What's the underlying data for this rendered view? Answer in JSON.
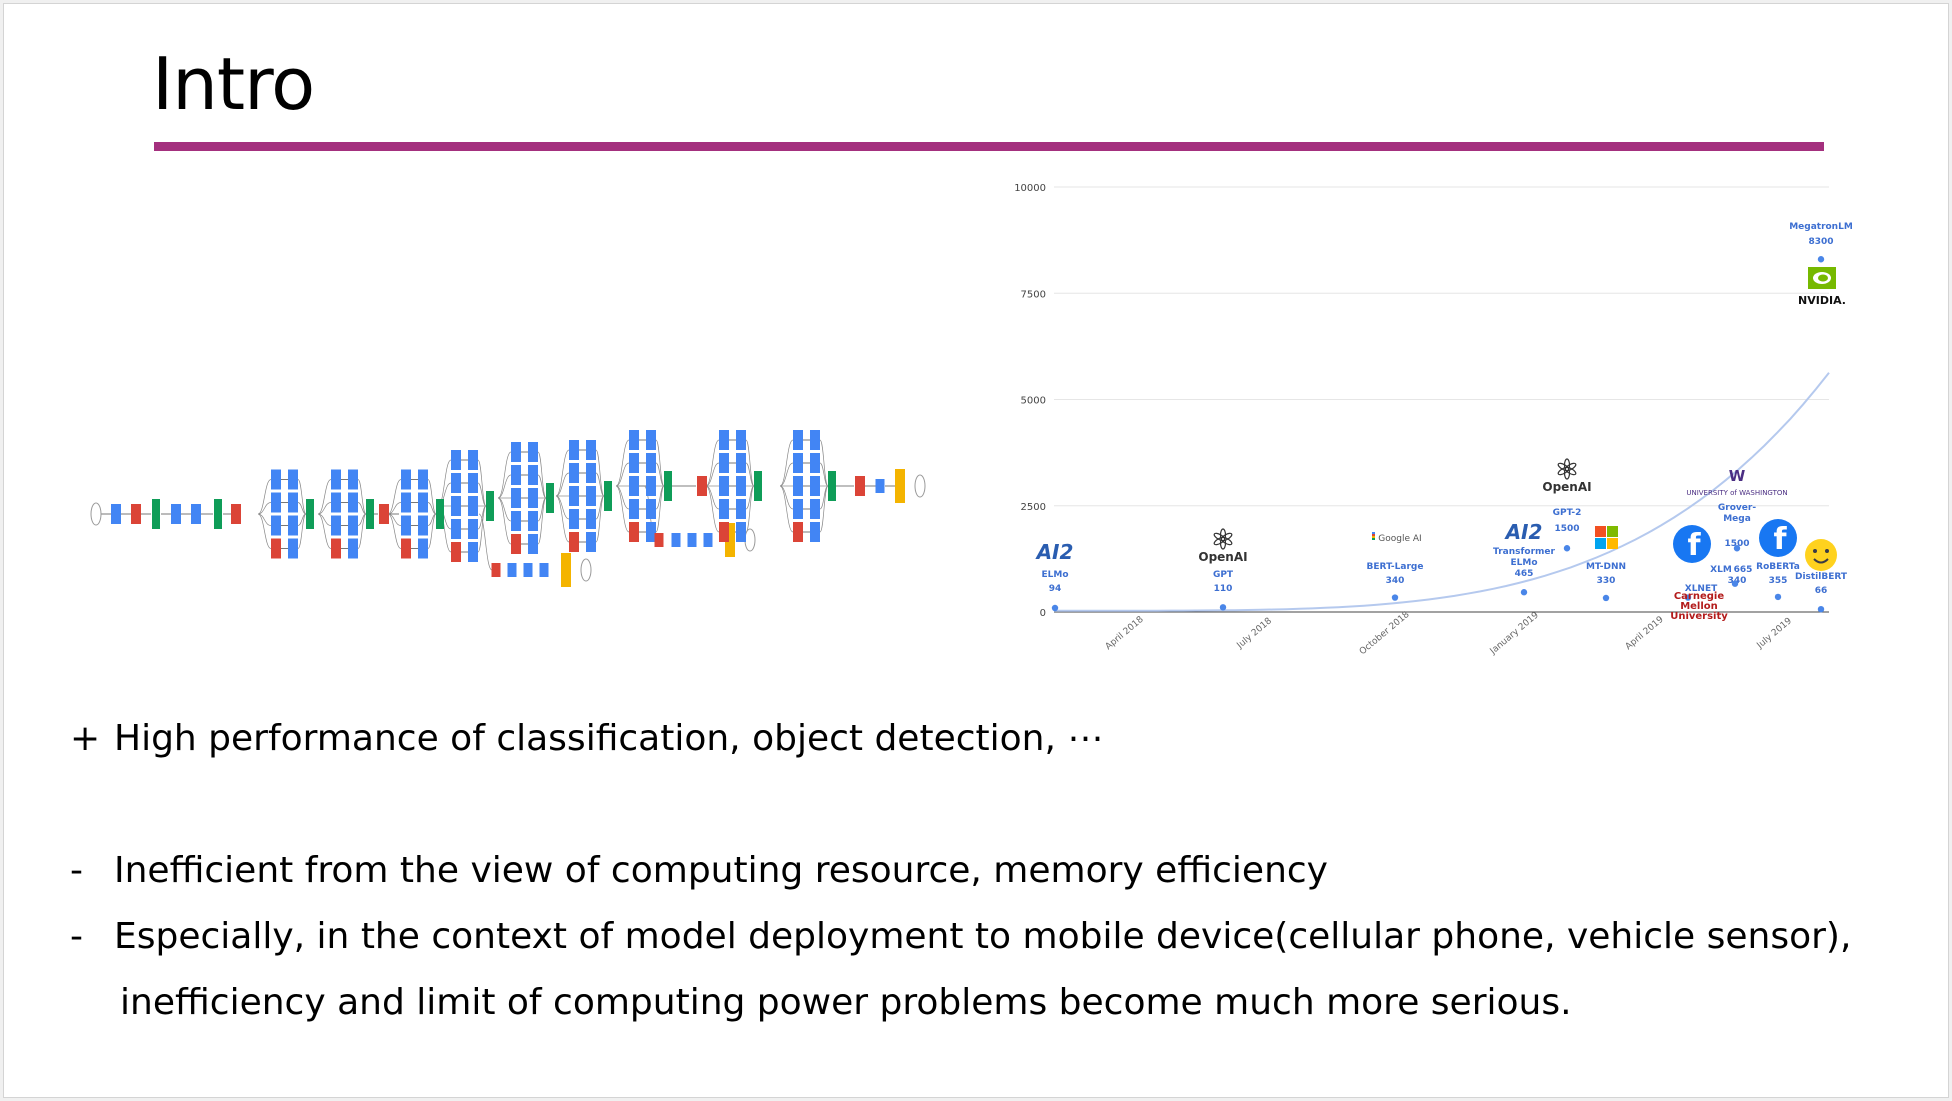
{
  "slide": {
    "title": "Intro",
    "accent_color": "#a4307e",
    "bullets": [
      {
        "marker": "+",
        "text": "High performance of classification, object detection, ⋯"
      },
      {
        "marker": "-",
        "text": "Inefficient from the view of computing resource, memory efficiency"
      },
      {
        "marker": "-",
        "text": "Especially, in the context of model deployment to mobile device(cellular phone, vehicle sensor),"
      },
      {
        "marker": "",
        "text": "inefficiency and limit of computing power problems become much more serious."
      }
    ]
  },
  "network_diagram": {
    "colors": {
      "conv": "#4285f4",
      "pool": "#db4437",
      "concat": "#0f9d58",
      "softmax": "#f4b400"
    }
  },
  "chart_data": {
    "type": "scatter",
    "ylim": [
      0,
      10000
    ],
    "yticks": [
      0,
      2500,
      5000,
      7500,
      10000
    ],
    "ytick_labels": [
      "0",
      "2500",
      "5000",
      "7500",
      "10000"
    ],
    "xtick_labels": [
      "April 2018",
      "July 2018",
      "October 2018",
      "January 2019",
      "April 2019",
      "July 2019"
    ],
    "point_color": "#4a86e8",
    "label_color": "#3d6fd1",
    "points": [
      {
        "model": "ELMo",
        "value": 94,
        "org": "AI2",
        "value_label": "94"
      },
      {
        "model": "GPT",
        "value": 110,
        "org": "OpenAI",
        "value_label": "110"
      },
      {
        "model": "BERT-Large",
        "value": 340,
        "org": "Google AI",
        "value_label": "340"
      },
      {
        "model": "Transformer ELMo",
        "value": 465,
        "org": "AI2",
        "value_label": "465"
      },
      {
        "model": "GPT-2",
        "value": 1500,
        "org": "OpenAI",
        "value_label": "1500"
      },
      {
        "model": "MT-DNN",
        "value": 330,
        "org": "Microsoft",
        "value_label": "330"
      },
      {
        "model": "XLNET",
        "value": 340,
        "org": "Carnegie Mellon University",
        "value_label": "340"
      },
      {
        "model": "XLM",
        "value": 665,
        "org": "Facebook",
        "value_label": "665"
      },
      {
        "model": "Grover-Mega",
        "value": 1500,
        "org": "University of Washington",
        "value_label": "1500"
      },
      {
        "model": "RoBERTa",
        "value": 355,
        "org": "Facebook",
        "value_label": "355"
      },
      {
        "model": "DistilBERT",
        "value": 66,
        "org": "Hugging Face",
        "value_label": "66"
      },
      {
        "model": "MegatronLM",
        "value": 8300,
        "org": "NVIDIA",
        "value_label": "8300"
      }
    ],
    "logos": {
      "ai2": "AI2",
      "openai": "OpenAI",
      "google": "Google AI",
      "uw": "UNIVERSITY of WASHINGTON",
      "uw_mark": "W",
      "cmu": [
        "Carnegie",
        "Mellon",
        "University"
      ],
      "nvidia": "NVIDIA."
    }
  }
}
